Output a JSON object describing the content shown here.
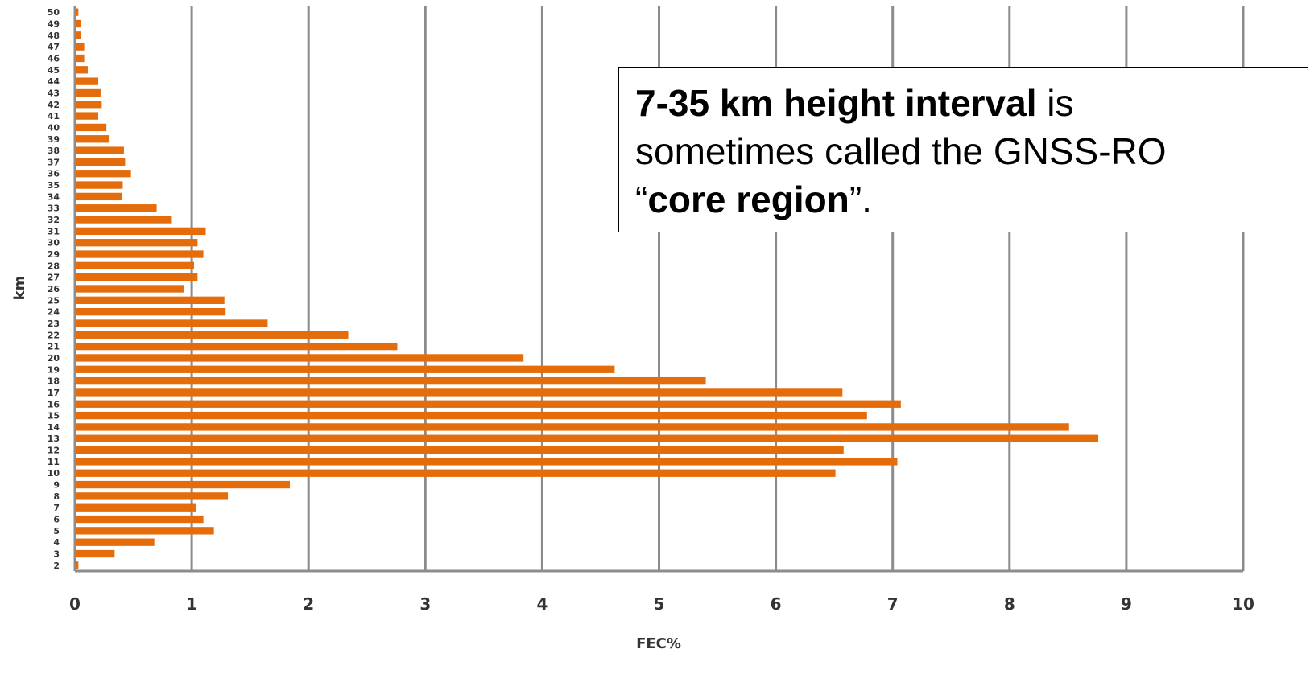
{
  "chart_data": {
    "type": "bar",
    "orientation": "horizontal",
    "title": "",
    "xlabel": "FEC%",
    "ylabel": "km",
    "xlim": [
      0,
      10
    ],
    "xticks": [
      0,
      1,
      2,
      3,
      4,
      5,
      6,
      7,
      8,
      9,
      10
    ],
    "grid": "vertical",
    "bar_color": "#E46C0A",
    "grid_color": "#8C8C8C",
    "categories": [
      2,
      3,
      4,
      5,
      6,
      7,
      8,
      9,
      10,
      11,
      12,
      13,
      14,
      15,
      16,
      17,
      18,
      19,
      20,
      21,
      22,
      23,
      24,
      25,
      26,
      27,
      28,
      29,
      30,
      31,
      32,
      33,
      34,
      35,
      36,
      37,
      38,
      39,
      40,
      41,
      42,
      43,
      44,
      45,
      46,
      47,
      48,
      49,
      50
    ],
    "values": [
      0.03,
      0.34,
      0.68,
      1.19,
      1.1,
      1.04,
      1.31,
      1.84,
      6.51,
      7.04,
      6.58,
      8.76,
      8.51,
      6.78,
      7.07,
      6.57,
      5.4,
      4.62,
      3.84,
      2.76,
      2.34,
      1.65,
      1.29,
      1.28,
      0.93,
      1.05,
      1.02,
      1.1,
      1.05,
      1.12,
      0.83,
      0.7,
      0.4,
      0.41,
      0.48,
      0.43,
      0.42,
      0.29,
      0.27,
      0.2,
      0.23,
      0.22,
      0.2,
      0.11,
      0.08,
      0.08,
      0.05,
      0.05,
      0.03
    ]
  },
  "annotation": {
    "line1_bold": "7-35 km height interval",
    "line1_rest": " is",
    "line2": "sometimes called the GNSS-RO",
    "line3_open": "“",
    "line3_bold": "core region",
    "line3_close": "”."
  }
}
